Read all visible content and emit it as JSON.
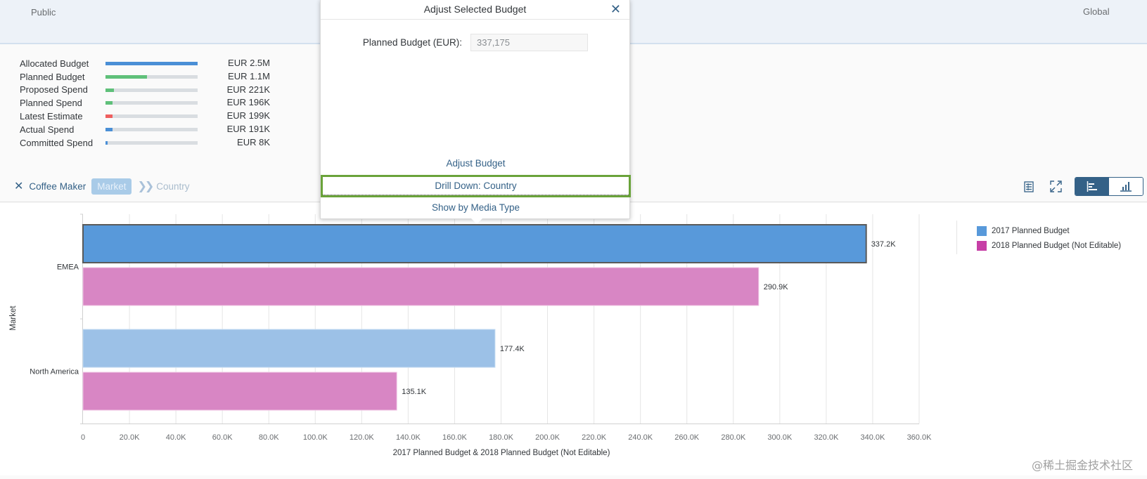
{
  "header": {
    "left_label": "Public",
    "right_label": "Global"
  },
  "summary": {
    "rows": [
      {
        "label": "Allocated Budget",
        "value": "EUR 2.5M",
        "fill": 1.0,
        "color": "#4a8fd6"
      },
      {
        "label": "Planned Budget",
        "value": "EUR 1.1M",
        "fill": 0.45,
        "color": "#5fc07a"
      },
      {
        "label": "Proposed Spend",
        "value": "EUR 221K",
        "fill": 0.088,
        "color": "#5fc07a"
      },
      {
        "label": "Planned Spend",
        "value": "EUR 196K",
        "fill": 0.078,
        "color": "#5fc07a"
      },
      {
        "label": "Latest Estimate",
        "value": "EUR 199K",
        "fill": 0.08,
        "color": "#ef5f5f"
      },
      {
        "label": "Actual Spend",
        "value": "EUR 191K",
        "fill": 0.076,
        "color": "#4a8fd6"
      },
      {
        "label": "Committed Spend",
        "value": "EUR 8K",
        "fill": 0.003,
        "color": "#4a8fd6"
      }
    ]
  },
  "breadcrumb": {
    "close_icon": "close-icon",
    "root": "Coffee Maker",
    "active": "Market",
    "separator_icon": "double-chevron-right-icon",
    "next": "Country"
  },
  "toolbar": {
    "icons": [
      "table-view-icon",
      "fullscreen-icon"
    ],
    "segmented": [
      {
        "icon": "horizontal-bar-chart-icon",
        "selected": true
      },
      {
        "icon": "vertical-bar-chart-icon",
        "selected": false
      }
    ]
  },
  "popover": {
    "title": "Adjust Selected Budget",
    "close_icon": "close-icon",
    "field_label": "Planned Budget (EUR):",
    "field_value": "337,175",
    "actions": [
      {
        "label": "Adjust Budget"
      },
      {
        "label": "Drill Down: Country",
        "highlighted": true
      },
      {
        "label": "Show by Media Type"
      }
    ]
  },
  "chart_data": {
    "type": "bar",
    "orientation": "horizontal",
    "categories": [
      "EMEA",
      "North America"
    ],
    "series": [
      {
        "name": "2017 Planned Budget",
        "values": [
          337.2,
          177.4
        ],
        "labels": [
          "337.2K",
          "177.4K"
        ],
        "color": "#5899da",
        "selected": [
          true,
          false
        ]
      },
      {
        "name": "2018 Planned Budget (Not Editable)",
        "values": [
          290.9,
          135.1
        ],
        "labels": [
          "290.9K",
          "135.1K"
        ],
        "color": "#d886c4",
        "legend_color": "#c73fa6"
      }
    ],
    "unit": "K",
    "xlim": [
      0,
      360
    ],
    "xticks": [
      "0",
      "20.0K",
      "40.0K",
      "60.0K",
      "80.0K",
      "100.0K",
      "120.0K",
      "140.0K",
      "160.0K",
      "180.0K",
      "200.0K",
      "220.0K",
      "240.0K",
      "260.0K",
      "280.0K",
      "300.0K",
      "320.0K",
      "340.0K",
      "360.0K"
    ],
    "xlabel": "2017 Planned Budget & 2018 Planned Budget (Not Editable)",
    "ylabel": "Market",
    "grid": true,
    "legend": "top-right"
  },
  "watermark": "@稀土掘金技术社区"
}
